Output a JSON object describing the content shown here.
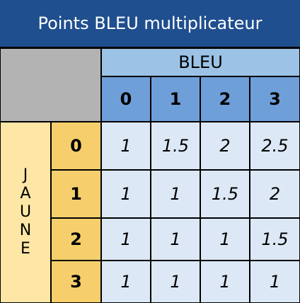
{
  "title": "Points BLEU multiplicateur",
  "bleu_label": "BLEU",
  "jaune_label": "JAUNE",
  "jaune_letters": [
    "J",
    "A",
    "U",
    "N",
    "E"
  ],
  "bleu_columns": [
    "0",
    "1",
    "2",
    "3"
  ],
  "jaune_rows": [
    "0",
    "1",
    "2",
    "3"
  ],
  "values": [
    [
      "1",
      "1.5",
      "2",
      "2.5"
    ],
    [
      "1",
      "1",
      "1.5",
      "2"
    ],
    [
      "1",
      "1",
      "1",
      "1.5"
    ],
    [
      "1",
      "1",
      "1",
      "1"
    ]
  ]
}
